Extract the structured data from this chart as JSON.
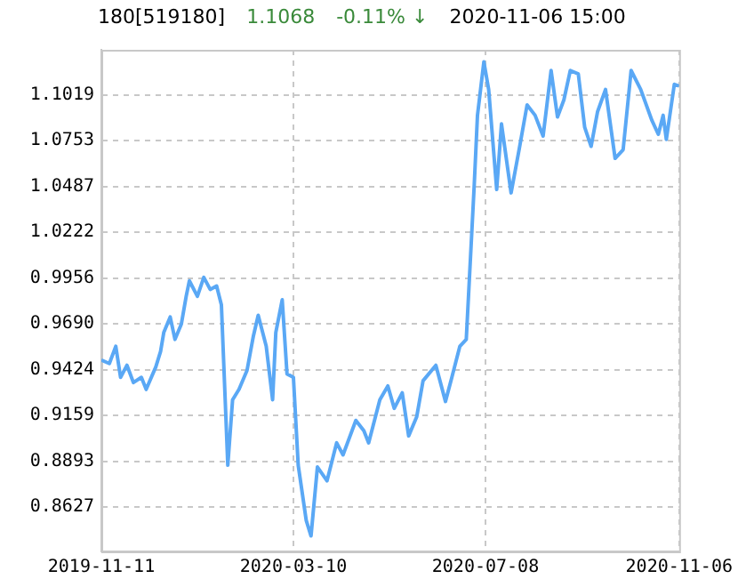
{
  "chart_data": {
    "type": "line",
    "title": "180[519180]",
    "annotations": [
      "1.1068",
      "-0.11% ↓",
      "2020-11-06 15:00"
    ],
    "x": [
      "2019-11-11",
      "2019-11-16",
      "2019-11-20",
      "2019-11-23",
      "2019-11-27",
      "2019-12-01",
      "2019-12-06",
      "2019-12-09",
      "2019-12-15",
      "2019-12-18",
      "2019-12-20",
      "2019-12-24",
      "2019-12-27",
      "2019-12-31",
      "2020-01-03",
      "2020-01-05",
      "2020-01-10",
      "2020-01-14",
      "2020-01-18",
      "2020-01-22",
      "2020-01-25",
      "2020-01-29",
      "2020-02-01",
      "2020-02-05",
      "2020-02-10",
      "2020-02-14",
      "2020-02-17",
      "2020-02-22",
      "2020-02-26",
      "2020-02-28",
      "2020-03-03",
      "2020-03-06",
      "2020-03-10",
      "2020-03-13",
      "2020-03-18",
      "2020-03-21",
      "2020-03-25",
      "2020-03-31",
      "2020-04-06",
      "2020-04-10",
      "2020-04-18",
      "2020-04-23",
      "2020-04-26",
      "2020-05-03",
      "2020-05-08",
      "2020-05-12",
      "2020-05-17",
      "2020-05-21",
      "2020-05-26",
      "2020-05-30",
      "2020-06-07",
      "2020-06-13",
      "2020-06-17",
      "2020-06-22",
      "2020-06-26",
      "2020-06-28",
      "2020-07-01",
      "2020-07-03",
      "2020-07-07",
      "2020-07-10",
      "2020-07-15",
      "2020-07-18",
      "2020-07-24",
      "2020-07-29",
      "2020-08-03",
      "2020-08-08",
      "2020-08-13",
      "2020-08-18",
      "2020-08-22",
      "2020-08-26",
      "2020-08-30",
      "2020-09-04",
      "2020-09-08",
      "2020-09-12",
      "2020-09-16",
      "2020-09-21",
      "2020-09-27",
      "2020-10-02",
      "2020-10-07",
      "2020-10-13",
      "2020-10-20",
      "2020-10-24",
      "2020-10-27",
      "2020-10-29",
      "2020-11-03",
      "2020-11-06"
    ],
    "series": [
      {
        "color": "#5aa8f5",
        "values": [
          0.948,
          0.946,
          0.956,
          0.938,
          0.945,
          0.935,
          0.938,
          0.931,
          0.944,
          0.953,
          0.964,
          0.973,
          0.96,
          0.969,
          0.985,
          0.994,
          0.985,
          0.996,
          0.989,
          0.991,
          0.98,
          0.887,
          0.925,
          0.931,
          0.942,
          0.962,
          0.974,
          0.956,
          0.925,
          0.964,
          0.983,
          0.94,
          0.938,
          0.887,
          0.855,
          0.846,
          0.886,
          0.878,
          0.9,
          0.893,
          0.913,
          0.907,
          0.9,
          0.925,
          0.933,
          0.92,
          0.929,
          0.904,
          0.915,
          0.936,
          0.945,
          0.924,
          0.938,
          0.956,
          0.96,
          0.996,
          1.05,
          1.09,
          1.121,
          1.105,
          1.047,
          1.085,
          1.045,
          1.07,
          1.096,
          1.09,
          1.078,
          1.116,
          1.089,
          1.099,
          1.116,
          1.114,
          1.083,
          1.072,
          1.092,
          1.105,
          1.065,
          1.07,
          1.116,
          1.105,
          1.087,
          1.079,
          1.09,
          1.076,
          1.108,
          1.107
        ]
      }
    ],
    "xlim": [
      "2019-11-11",
      "2020-11-06"
    ],
    "xticks": [
      "2019-11-11",
      "2020-03-10",
      "2020-07-08",
      "2020-11-06"
    ],
    "ylim": [
      0.837,
      1.128
    ],
    "yticks": [
      {
        "value": 0.8627,
        "label": "0.8627"
      },
      {
        "value": 0.8893,
        "label": "0.8893"
      },
      {
        "value": 0.9159,
        "label": "0.9159"
      },
      {
        "value": 0.9424,
        "label": "0.9424"
      },
      {
        "value": 0.969,
        "label": "0.9690"
      },
      {
        "value": 0.9956,
        "label": "0.9956"
      },
      {
        "value": 1.0222,
        "label": "1.0222"
      },
      {
        "value": 1.0487,
        "label": "1.0487"
      },
      {
        "value": 1.0753,
        "label": "1.0753"
      },
      {
        "value": 1.1019,
        "label": "1.1019"
      }
    ],
    "grid": true,
    "line_style": "solid",
    "marker": "none"
  }
}
